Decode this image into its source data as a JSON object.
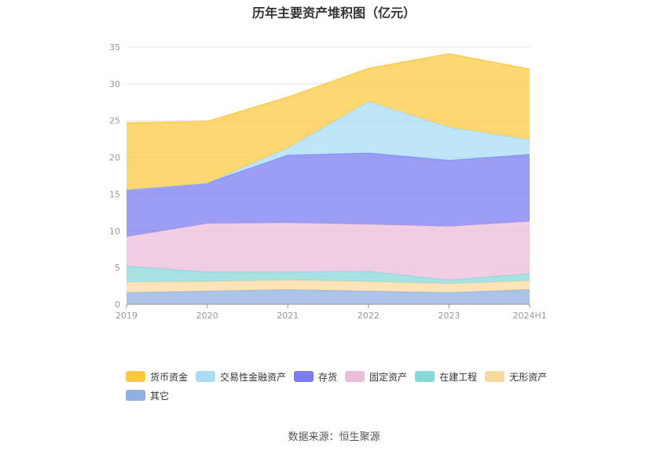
{
  "chart_data": {
    "type": "area",
    "stacked": true,
    "title": "历年主要资产堆积图（亿元）",
    "categories": [
      "2019",
      "2020",
      "2021",
      "2022",
      "2023",
      "2024H1"
    ],
    "ylim": [
      0,
      35
    ],
    "yticks": [
      0,
      5,
      10,
      15,
      20,
      25,
      30,
      35
    ],
    "grid": true,
    "legend_position": "bottom",
    "series": [
      {
        "name": "其它",
        "color": "#8fb0e0",
        "values": [
          1.6,
          1.8,
          2.0,
          1.8,
          1.6,
          2.0
        ]
      },
      {
        "name": "无形资产",
        "color": "#fdd9a0",
        "values": [
          1.4,
          1.3,
          1.3,
          1.3,
          1.2,
          1.2
        ]
      },
      {
        "name": "在建工程",
        "color": "#88d8d8",
        "values": [
          2.2,
          1.3,
          1.1,
          1.4,
          0.5,
          1.0
        ]
      },
      {
        "name": "固定资产",
        "color": "#ebbddb",
        "values": [
          4.0,
          6.6,
          6.7,
          6.4,
          7.3,
          7.1
        ]
      },
      {
        "name": "存货",
        "color": "#7b7cf0",
        "values": [
          6.4,
          5.5,
          9.2,
          9.7,
          9.0,
          9.1
        ]
      },
      {
        "name": "交易性金融资产",
        "color": "#a8dcf8",
        "values": [
          0.0,
          0.0,
          1.0,
          7.0,
          4.5,
          2.0
        ]
      },
      {
        "name": "货币资金",
        "color": "#fdc843",
        "values": [
          9.1,
          8.4,
          6.9,
          4.5,
          10.0,
          9.6
        ]
      }
    ],
    "legend_order": [
      "货币资金",
      "交易性金融资产",
      "存货",
      "固定资产",
      "在建工程",
      "无形资产",
      "其它"
    ]
  },
  "source_text": "数据来源：恒生聚源"
}
